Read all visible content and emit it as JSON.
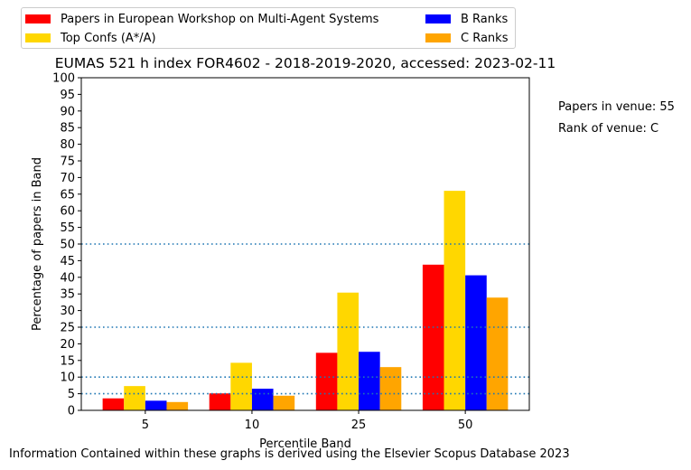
{
  "chart_data": {
    "type": "bar",
    "title": "EUMAS 521 h index FOR4602 - 2018-2019-2020, accessed: 2023-02-11",
    "xlabel": "Percentile Band",
    "ylabel": "Percentage of papers in Band",
    "categories": [
      "5",
      "10",
      "25",
      "50"
    ],
    "ylim": [
      0,
      100
    ],
    "yticks": [
      0,
      5,
      10,
      15,
      20,
      25,
      30,
      35,
      40,
      45,
      50,
      55,
      60,
      65,
      70,
      75,
      80,
      85,
      90,
      95,
      100
    ],
    "reference_lines": [
      5,
      10,
      25,
      50
    ],
    "grid": false,
    "legend_position": "top",
    "series": [
      {
        "name": "Papers in European Workshop on Multi-Agent Systems",
        "color": "#ff0000",
        "values": [
          3.6,
          5.1,
          17.3,
          43.8
        ]
      },
      {
        "name": "Top Confs (A*/A)",
        "color": "#ffd700",
        "values": [
          7.3,
          14.3,
          35.4,
          66.0
        ]
      },
      {
        "name": "B Ranks",
        "color": "#0000ff",
        "values": [
          2.9,
          6.5,
          17.6,
          40.6
        ]
      },
      {
        "name": "C Ranks",
        "color": "#ffa500",
        "values": [
          2.5,
          4.4,
          13.0,
          33.9
        ]
      }
    ]
  },
  "side_notes": {
    "papers_in_venue": "Papers in venue: 55",
    "rank_of_venue": "Rank of venue: C"
  },
  "footer": "Information Contained within these graphs is derived using the Elsevier Scopus Database 2023",
  "colors": {
    "reference_line": "#1f77b4"
  }
}
